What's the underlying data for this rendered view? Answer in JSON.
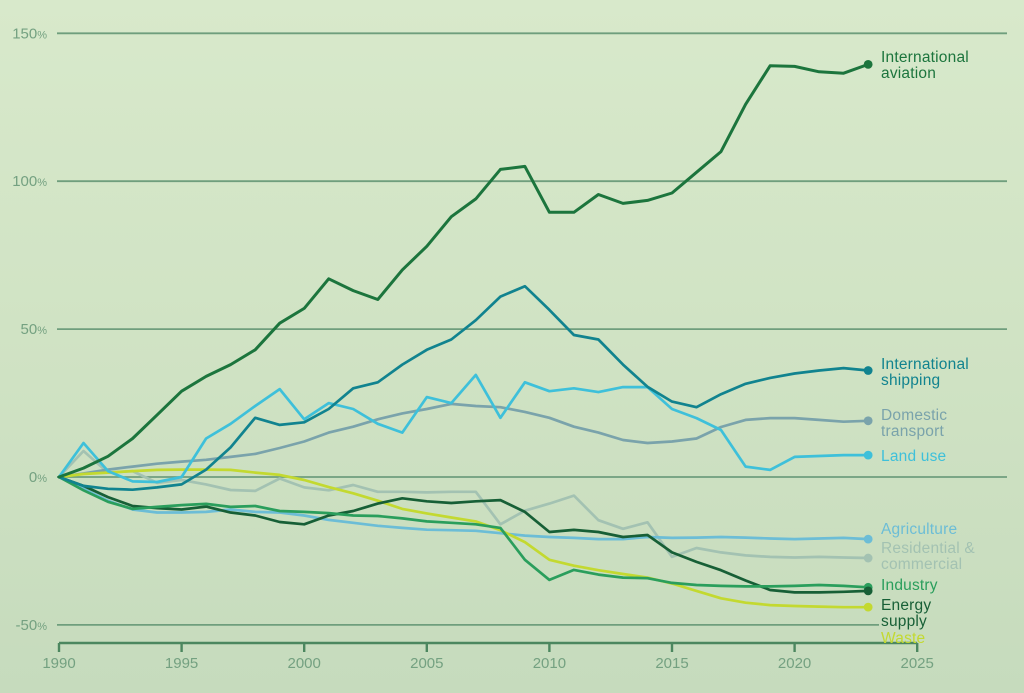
{
  "chart_data": {
    "type": "line",
    "title": "",
    "xlabel": "",
    "ylabel": "",
    "x_start": 1990,
    "x_step": 1,
    "x_end": 2023,
    "xlim": [
      1990,
      2025
    ],
    "ylim": [
      -57,
      157
    ],
    "grid": "horizontal",
    "legend_position": "right-end-labels",
    "y_tick_suffix": "%",
    "y_ticks": [
      150,
      100,
      50,
      0,
      -50
    ],
    "x_ticks": [
      1990,
      1995,
      2000,
      2005,
      2010,
      2015,
      2020,
      2025
    ],
    "series": [
      {
        "name": "international-aviation",
        "label_lines": [
          "International",
          "aviation"
        ],
        "color": "#1c753d",
        "label_y": [
          62,
          78
        ],
        "values": [
          0,
          3,
          7,
          13,
          21,
          29,
          34,
          38,
          43,
          52,
          57,
          67,
          63,
          60,
          70,
          78,
          88,
          94,
          104,
          105,
          89.5,
          89.5,
          95.5,
          92.5,
          93.5,
          96,
          103,
          110,
          126,
          139,
          138.8,
          137,
          136.5,
          139.5
        ]
      },
      {
        "name": "international-shipping",
        "label_lines": [
          "International",
          "shipping"
        ],
        "color": "#11838f",
        "label_y": [
          369,
          385
        ],
        "values": [
          0,
          -3,
          -4,
          -4.3,
          -3.5,
          -2.5,
          2.5,
          10,
          20,
          17.6,
          18.5,
          23,
          30,
          32,
          38,
          43,
          46.5,
          53,
          61,
          64.5,
          56.5,
          48,
          46.5,
          38,
          30.5,
          25.5,
          23.6,
          28,
          31.5,
          33.5,
          35,
          36,
          36.8,
          36
        ]
      },
      {
        "name": "domestic-transport",
        "label_lines": [
          "Domestic",
          "transport"
        ],
        "color": "#7aa3ab",
        "label_y": [
          420,
          436
        ],
        "values": [
          0,
          1.2,
          2.5,
          3.5,
          4.5,
          5.2,
          5.8,
          6.8,
          7.8,
          9.8,
          12,
          15,
          17,
          19.5,
          21.5,
          23,
          24.7,
          24,
          23.6,
          22,
          20,
          17,
          15,
          12.5,
          11.5,
          12,
          13,
          16.9,
          19.3,
          19.9,
          19.9,
          19.3,
          18.7,
          19
        ]
      },
      {
        "name": "land-use",
        "label_lines": [
          "Land use"
        ],
        "color": "#3ec0da",
        "label_y": [
          461
        ],
        "values": [
          0,
          11.5,
          2,
          -1.5,
          -1.7,
          0,
          13,
          18,
          24,
          29.7,
          19.5,
          25,
          23,
          18,
          15,
          27,
          25,
          34.5,
          20,
          32,
          29,
          30,
          28.7,
          30.4,
          30.4,
          23,
          19.9,
          15.9,
          3.5,
          2.4,
          6.8,
          7.1,
          7.4,
          7.4
        ]
      },
      {
        "name": "agriculture",
        "label_lines": [
          "Agriculture"
        ],
        "color": "#6cbdd6",
        "label_y": [
          534
        ],
        "values": [
          0,
          -4,
          -8,
          -11,
          -12,
          -12,
          -11.8,
          -11,
          -11.8,
          -12,
          -13,
          -14.5,
          -15.5,
          -16.5,
          -17.2,
          -17.8,
          -18,
          -18.2,
          -19,
          -19.8,
          -20.3,
          -20.6,
          -21,
          -21,
          -20.3,
          -20.6,
          -20.5,
          -20.3,
          -20.5,
          -20.8,
          -21,
          -20.8,
          -20.6,
          -21
        ]
      },
      {
        "name": "residential-commercial",
        "label_lines": [
          "Residential &",
          "commercial"
        ],
        "color": "#a3c2b2",
        "label_y": [
          553,
          569
        ],
        "values": [
          0,
          8.8,
          1.5,
          2,
          -2,
          -1,
          -2.5,
          -4.4,
          -4.7,
          -0.5,
          -3.5,
          -4.5,
          -2.7,
          -5,
          -5,
          -5.2,
          -5,
          -5,
          -16,
          -11.4,
          -9,
          -6.3,
          -14.6,
          -17.5,
          -15.3,
          -27,
          -24,
          -25.5,
          -26.5,
          -27,
          -27.2,
          -27,
          -27.2,
          -27.4
        ]
      },
      {
        "name": "industry",
        "label_lines": [
          "Industry"
        ],
        "color": "#2a9e5c",
        "label_y": [
          590
        ],
        "values": [
          0,
          -4.5,
          -8.4,
          -10.8,
          -10.1,
          -9.5,
          -9.1,
          -10.1,
          -9.8,
          -11.5,
          -11.8,
          -12.2,
          -13,
          -13.2,
          -14,
          -15,
          -15.5,
          -16,
          -17.2,
          -28,
          -34.8,
          -31.4,
          -33,
          -34,
          -34.2,
          -35.8,
          -36.5,
          -36.8,
          -37,
          -37,
          -36.8,
          -36.5,
          -36.8,
          -37.3
        ]
      },
      {
        "name": "energy-supply",
        "label_lines": [
          "Energy",
          "supply"
        ],
        "color": "#175f36",
        "label_y": [
          610,
          626
        ],
        "values": [
          0,
          -3,
          -6.8,
          -9.8,
          -10.5,
          -11,
          -10,
          -12,
          -13,
          -15.2,
          -16,
          -13,
          -11.5,
          -9,
          -7.2,
          -8.2,
          -8.8,
          -8.2,
          -7.8,
          -11.8,
          -18.6,
          -17.9,
          -18.6,
          -20.3,
          -19.6,
          -25.5,
          -28.7,
          -31.5,
          -35,
          -38.2,
          -39,
          -39,
          -38.8,
          -38.5
        ]
      },
      {
        "name": "waste",
        "label_lines": [
          "Waste"
        ],
        "color": "#c3d930",
        "label_y": [
          643
        ],
        "values": [
          0,
          1,
          1.5,
          2,
          2.4,
          2.5,
          2.5,
          2.4,
          1.5,
          0.7,
          -1,
          -3.4,
          -5.5,
          -8,
          -10.8,
          -12.3,
          -13.7,
          -15,
          -18,
          -22,
          -28,
          -30,
          -31.5,
          -32.8,
          -34,
          -36,
          -38.5,
          -41,
          -42.5,
          -43.3,
          -43.6,
          -43.8,
          -44,
          -44
        ]
      }
    ]
  },
  "colors": {
    "background_top": "#d8e9cb",
    "background_bottom": "#c6dbbd",
    "gridline": "#6f9e7d",
    "axis": "#4c875f",
    "tick_text": "#74a181"
  }
}
